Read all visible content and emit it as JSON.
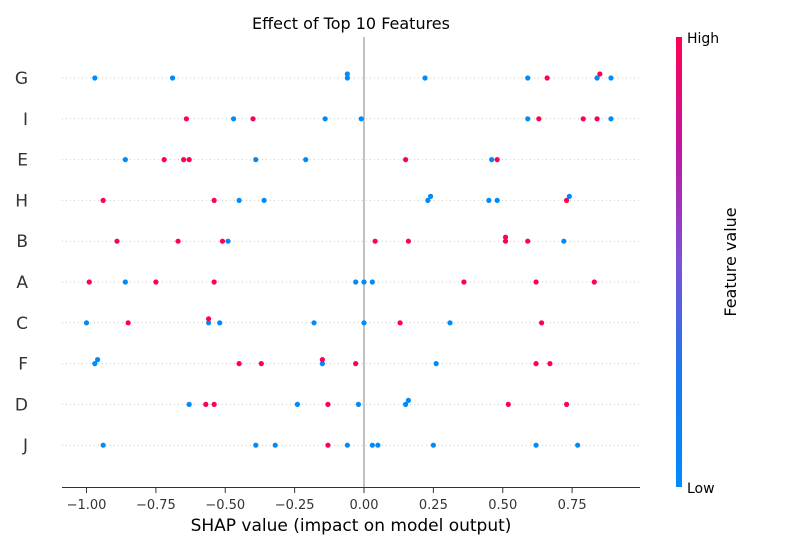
{
  "chart_data": {
    "type": "scatter",
    "title": "Effect of Top 10 Features",
    "xlabel": "SHAP value (impact on model output)",
    "xlim": [
      -1.08,
      0.99
    ],
    "xticks": [
      "−1.00",
      "−0.75",
      "−0.50",
      "−0.25",
      "0.00",
      "0.25",
      "0.50",
      "0.75"
    ],
    "xtick_values": [
      -1.0,
      -0.75,
      -0.5,
      -0.25,
      0.0,
      0.25,
      0.5,
      0.75
    ],
    "features": [
      "G",
      "I",
      "E",
      "H",
      "B",
      "A",
      "C",
      "F",
      "D",
      "J"
    ],
    "colorbar": {
      "title": "Feature value",
      "high_label": "High",
      "low_label": "Low"
    },
    "colors": {
      "low": "#008bfb",
      "high": "#ff0052",
      "zero_line": "#999999",
      "grid": "#cccccc"
    },
    "series": [
      {
        "feature": "G",
        "points": [
          {
            "x": -0.97,
            "v": 0.0
          },
          {
            "x": -0.69,
            "v": 0.0
          },
          {
            "x": -0.06,
            "v": 0.0
          },
          {
            "x": -0.06,
            "v": 0.0
          },
          {
            "x": 0.22,
            "v": 0.0
          },
          {
            "x": 0.59,
            "v": 0.0
          },
          {
            "x": 0.66,
            "v": 1.0
          },
          {
            "x": 0.84,
            "v": 0.0
          },
          {
            "x": 0.85,
            "v": 1.0
          },
          {
            "x": 0.89,
            "v": 0.0
          }
        ]
      },
      {
        "feature": "I",
        "points": [
          {
            "x": -0.64,
            "v": 1.0
          },
          {
            "x": -0.47,
            "v": 0.0
          },
          {
            "x": -0.4,
            "v": 1.0
          },
          {
            "x": -0.14,
            "v": 0.0
          },
          {
            "x": -0.01,
            "v": 0.0
          },
          {
            "x": 0.59,
            "v": 0.0
          },
          {
            "x": 0.63,
            "v": 1.0
          },
          {
            "x": 0.79,
            "v": 1.0
          },
          {
            "x": 0.84,
            "v": 1.0
          },
          {
            "x": 0.89,
            "v": 0.0
          }
        ]
      },
      {
        "feature": "E",
        "points": [
          {
            "x": -0.86,
            "v": 0.0
          },
          {
            "x": -0.72,
            "v": 1.0
          },
          {
            "x": -0.65,
            "v": 1.0
          },
          {
            "x": -0.63,
            "v": 1.0
          },
          {
            "x": -0.39,
            "v": 0.0
          },
          {
            "x": -0.21,
            "v": 0.0
          },
          {
            "x": 0.15,
            "v": 1.0
          },
          {
            "x": 0.46,
            "v": 0.0
          },
          {
            "x": 0.48,
            "v": 1.0
          }
        ]
      },
      {
        "feature": "H",
        "points": [
          {
            "x": -0.94,
            "v": 1.0
          },
          {
            "x": -0.54,
            "v": 1.0
          },
          {
            "x": -0.45,
            "v": 0.0
          },
          {
            "x": -0.36,
            "v": 0.0
          },
          {
            "x": 0.23,
            "v": 0.0
          },
          {
            "x": 0.24,
            "v": 0.0
          },
          {
            "x": 0.45,
            "v": 0.0
          },
          {
            "x": 0.48,
            "v": 0.0
          },
          {
            "x": 0.73,
            "v": 1.0
          },
          {
            "x": 0.74,
            "v": 0.0
          }
        ]
      },
      {
        "feature": "B",
        "points": [
          {
            "x": -0.89,
            "v": 1.0
          },
          {
            "x": -0.67,
            "v": 1.0
          },
          {
            "x": -0.51,
            "v": 1.0
          },
          {
            "x": -0.49,
            "v": 0.0
          },
          {
            "x": 0.04,
            "v": 1.0
          },
          {
            "x": 0.16,
            "v": 1.0
          },
          {
            "x": 0.51,
            "v": 1.0
          },
          {
            "x": 0.51,
            "v": 1.0
          },
          {
            "x": 0.59,
            "v": 1.0
          },
          {
            "x": 0.72,
            "v": 0.0
          }
        ]
      },
      {
        "feature": "A",
        "points": [
          {
            "x": -0.99,
            "v": 1.0
          },
          {
            "x": -0.86,
            "v": 0.0
          },
          {
            "x": -0.75,
            "v": 1.0
          },
          {
            "x": -0.54,
            "v": 1.0
          },
          {
            "x": -0.03,
            "v": 0.0
          },
          {
            "x": 0.0,
            "v": 0.0
          },
          {
            "x": 0.03,
            "v": 0.0
          },
          {
            "x": 0.36,
            "v": 1.0
          },
          {
            "x": 0.62,
            "v": 1.0
          },
          {
            "x": 0.83,
            "v": 1.0
          }
        ]
      },
      {
        "feature": "C",
        "points": [
          {
            "x": -1.0,
            "v": 0.0
          },
          {
            "x": -0.85,
            "v": 1.0
          },
          {
            "x": -0.56,
            "v": 0.0
          },
          {
            "x": -0.56,
            "v": 1.0
          },
          {
            "x": -0.52,
            "v": 0.0
          },
          {
            "x": -0.18,
            "v": 0.0
          },
          {
            "x": 0.0,
            "v": 0.0
          },
          {
            "x": 0.13,
            "v": 1.0
          },
          {
            "x": 0.31,
            "v": 0.0
          },
          {
            "x": 0.64,
            "v": 1.0
          }
        ]
      },
      {
        "feature": "F",
        "points": [
          {
            "x": -0.97,
            "v": 0.0
          },
          {
            "x": -0.96,
            "v": 0.0
          },
          {
            "x": -0.45,
            "v": 1.0
          },
          {
            "x": -0.37,
            "v": 1.0
          },
          {
            "x": -0.15,
            "v": 0.0
          },
          {
            "x": -0.15,
            "v": 1.0
          },
          {
            "x": -0.03,
            "v": 1.0
          },
          {
            "x": 0.26,
            "v": 0.0
          },
          {
            "x": 0.62,
            "v": 1.0
          },
          {
            "x": 0.67,
            "v": 1.0
          }
        ]
      },
      {
        "feature": "D",
        "points": [
          {
            "x": -0.63,
            "v": 0.0
          },
          {
            "x": -0.57,
            "v": 1.0
          },
          {
            "x": -0.54,
            "v": 1.0
          },
          {
            "x": -0.24,
            "v": 0.0
          },
          {
            "x": -0.13,
            "v": 1.0
          },
          {
            "x": -0.02,
            "v": 0.0
          },
          {
            "x": 0.16,
            "v": 0.0
          },
          {
            "x": 0.15,
            "v": 0.0
          },
          {
            "x": 0.52,
            "v": 1.0
          },
          {
            "x": 0.73,
            "v": 1.0
          }
        ]
      },
      {
        "feature": "J",
        "points": [
          {
            "x": -0.94,
            "v": 0.0
          },
          {
            "x": -0.39,
            "v": 0.0
          },
          {
            "x": -0.32,
            "v": 0.0
          },
          {
            "x": -0.13,
            "v": 1.0
          },
          {
            "x": -0.06,
            "v": 0.0
          },
          {
            "x": 0.03,
            "v": 0.0
          },
          {
            "x": 0.05,
            "v": 0.0
          },
          {
            "x": 0.25,
            "v": 0.0
          },
          {
            "x": 0.62,
            "v": 0.0
          },
          {
            "x": 0.77,
            "v": 0.0
          }
        ]
      }
    ]
  }
}
